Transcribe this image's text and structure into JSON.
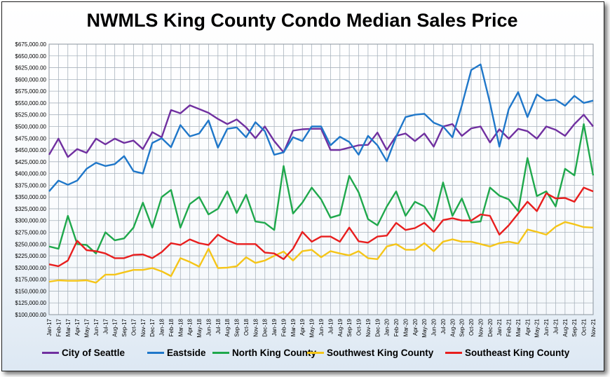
{
  "chart_data": {
    "type": "line",
    "title": "NWMLS King County Condo Median Sales Price",
    "xlabel": "",
    "ylabel": "",
    "ylim": [
      100000,
      675000
    ],
    "ytick_step": 25000,
    "ytick_labels": [
      "$100,000.00",
      "$125,000.00",
      "$150,000.00",
      "$175,000.00",
      "$200,000.00",
      "$225,000.00",
      "$250,000.00",
      "$275,000.00",
      "$300,000.00",
      "$325,000.00",
      "$350,000.00",
      "$375,000.00",
      "$400,000.00",
      "$425,000.00",
      "$450,000.00",
      "$475,000.00",
      "$500,000.00",
      "$525,000.00",
      "$550,000.00",
      "$575,000.00",
      "$600,000.00",
      "$625,000.00",
      "$650,000.00",
      "$675,000.00"
    ],
    "grid": true,
    "legend": "bottom",
    "categories": [
      "Jan-17",
      "Feb-17",
      "Mar-17",
      "Apr-17",
      "May-17",
      "Jun-17",
      "Jul-17",
      "Aug-17",
      "Sep-17",
      "Oct-17",
      "Nov-17",
      "Dec-17",
      "Jan-18",
      "Feb-18",
      "Mar-18",
      "Apr-18",
      "May-18",
      "Jun-18",
      "Jul-18",
      "Aug-18",
      "Sep-18",
      "Oct-18",
      "Nov-18",
      "Dec-18",
      "Jan-19",
      "Feb-19",
      "Mar-19",
      "Apr-19",
      "May-19",
      "Jun-19",
      "Jul-19",
      "Aug-19",
      "Sep-19",
      "Oct-19",
      "Nov-19",
      "Dec-19",
      "Jan-20",
      "Feb-20",
      "Mar-20",
      "Apr-20",
      "May-20",
      "Jun-20",
      "Jul-20",
      "Aug-20",
      "Sep-20",
      "Oct-20",
      "Nov-20",
      "Dec-20",
      "Jan-21",
      "Feb-21",
      "Mar-21",
      "Apr-21",
      "May-21",
      "Jun-21",
      "Jul-21",
      "Aug-21",
      "Sep-21",
      "Oct-21",
      "Nov-21"
    ],
    "series": [
      {
        "name": "City of Seattle",
        "color": "#7030A0",
        "values": [
          440000,
          474000,
          435000,
          452000,
          444000,
          474000,
          462000,
          474000,
          465000,
          470000,
          452000,
          488000,
          477000,
          535000,
          528000,
          545000,
          537000,
          529000,
          516000,
          505000,
          515000,
          498000,
          475000,
          500000,
          469000,
          445000,
          491000,
          494000,
          495000,
          495000,
          450000,
          450000,
          455000,
          460000,
          461000,
          487000,
          450000,
          480000,
          485000,
          469000,
          485000,
          457000,
          500000,
          505000,
          480000,
          496000,
          500000,
          466000,
          494000,
          474000,
          495000,
          490000,
          474000,
          500000,
          493000,
          480000,
          505000,
          525000,
          500000
        ]
      },
      {
        "name": "Eastside",
        "color": "#1F77C9",
        "values": [
          362000,
          385000,
          376000,
          385000,
          410000,
          423000,
          416000,
          420000,
          437000,
          405000,
          400000,
          465000,
          475000,
          456000,
          503000,
          479000,
          485000,
          513000,
          455000,
          495000,
          498000,
          477000,
          509000,
          490000,
          440000,
          445000,
          477000,
          469000,
          500000,
          500000,
          460000,
          478000,
          467000,
          440000,
          480000,
          460000,
          426000,
          478000,
          520000,
          525000,
          527000,
          508000,
          500000,
          477000,
          545000,
          620000,
          632000,
          550000,
          457000,
          537000,
          573000,
          520000,
          568000,
          555000,
          557000,
          544000,
          565000,
          550000,
          555000
        ]
      },
      {
        "name": "North King County",
        "color": "#1FA84C",
        "values": [
          245000,
          240000,
          310000,
          250000,
          248000,
          230000,
          275000,
          258000,
          262000,
          285000,
          338000,
          285000,
          350000,
          365000,
          285000,
          335000,
          350000,
          313000,
          325000,
          362000,
          316000,
          355000,
          298000,
          295000,
          280000,
          416000,
          315000,
          338000,
          370000,
          345000,
          306000,
          312000,
          395000,
          360000,
          303000,
          290000,
          330000,
          362000,
          310000,
          340000,
          330000,
          300000,
          381000,
          310000,
          347000,
          296000,
          298000,
          370000,
          353000,
          345000,
          320000,
          433000,
          352000,
          362000,
          330000,
          410000,
          396000,
          505000,
          396000
        ]
      },
      {
        "name": "Southwest King County",
        "color": "#F5C518",
        "values": [
          170000,
          173000,
          172000,
          172000,
          173000,
          168000,
          185000,
          185000,
          190000,
          195000,
          195000,
          199000,
          192000,
          182000,
          220000,
          212000,
          202000,
          240000,
          199000,
          200000,
          203000,
          222000,
          210000,
          215000,
          225000,
          234000,
          215000,
          235000,
          238000,
          222000,
          235000,
          230000,
          226000,
          235000,
          220000,
          218000,
          245000,
          250000,
          238000,
          238000,
          252000,
          235000,
          255000,
          260000,
          255000,
          255000,
          250000,
          245000,
          252000,
          255000,
          251000,
          281000,
          276000,
          270000,
          287000,
          297000,
          292000,
          286000,
          285000
        ]
      },
      {
        "name": "Southeast King County",
        "color": "#E81E1E",
        "values": [
          207000,
          203000,
          215000,
          257000,
          237000,
          235000,
          230000,
          220000,
          220000,
          227000,
          228000,
          220000,
          233000,
          252000,
          248000,
          260000,
          252000,
          248000,
          270000,
          258000,
          250000,
          250000,
          250000,
          232000,
          230000,
          218000,
          240000,
          276000,
          255000,
          266000,
          266000,
          255000,
          285000,
          256000,
          253000,
          266000,
          268000,
          295000,
          280000,
          284000,
          295000,
          276000,
          301000,
          305000,
          300000,
          300000,
          313000,
          310000,
          270000,
          290000,
          315000,
          340000,
          320000,
          358000,
          347000,
          348000,
          340000,
          370000,
          362000
        ]
      }
    ]
  }
}
